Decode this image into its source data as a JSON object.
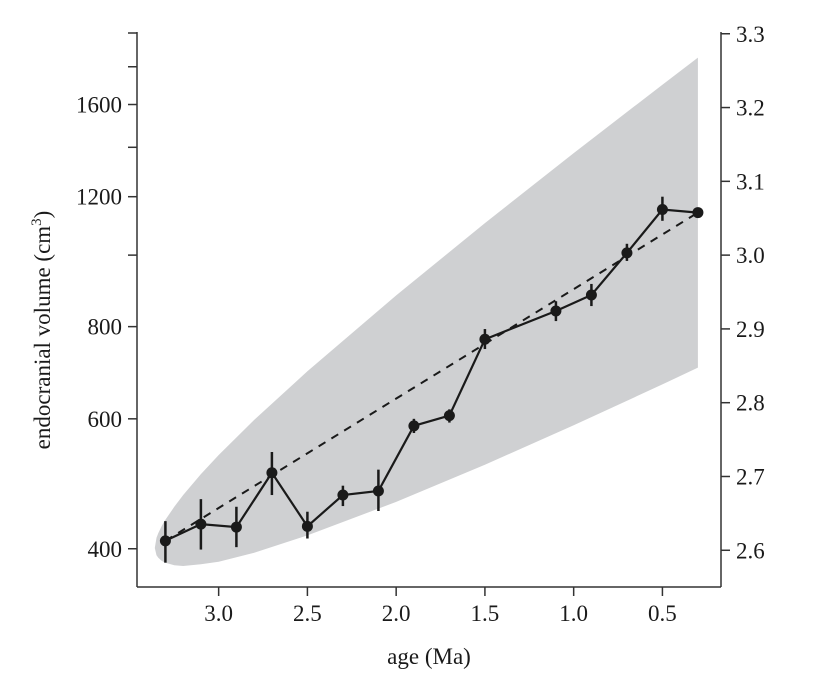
{
  "chart_data": {
    "type": "line",
    "title": "",
    "xlabel": "age (Ma)",
    "ylabel_main": "endocranial volume (cm",
    "ylabel_sup": "3",
    "ylabel_close": ")",
    "x_axis_reversed": true,
    "xlim": [
      3.46,
      0.17
    ],
    "y_scale": "log",
    "ylim": [
      355,
      2000
    ],
    "x_ticks": [
      "3.0",
      "2.5",
      "2.0",
      "1.5",
      "1.0",
      "0.5"
    ],
    "y_left_tick_labels": [
      "400",
      "600",
      "800",
      "1200",
      "1600"
    ],
    "y_left_minor_ticks": [
      1000,
      1400,
      1800,
      2000
    ],
    "y_right_ticks": [
      "2.6",
      "2.7",
      "2.8",
      "2.9",
      "3.0",
      "3.1",
      "3.2",
      "3.3"
    ],
    "grid": false,
    "series": [
      {
        "style": "solid line with points and error bars",
        "x": [
          3.3,
          3.1,
          2.9,
          2.7,
          2.5,
          2.3,
          2.1,
          1.9,
          1.7,
          1.5,
          1.1,
          0.9,
          0.7,
          0.5,
          0.3
        ],
        "y": [
          410,
          432,
          428,
          507,
          429,
          473,
          479,
          587,
          606,
          769,
          840,
          883,
          1007,
          1153,
          1142
        ],
        "y_lower": [
          383,
          399,
          402,
          473,
          413,
          457,
          450,
          574,
          593,
          746,
          814,
          853,
          982,
          1113,
          1130
        ],
        "y_upper": [
          436,
          467,
          456,
          541,
          449,
          487,
          512,
          600,
          618,
          794,
          866,
          914,
          1036,
          1200,
          1155
        ]
      }
    ],
    "trend_line": {
      "style": "dashed",
      "x": [
        3.3,
        0.3
      ],
      "y": [
        410,
        1142
      ]
    },
    "envelope": {
      "color": "#cfd0d2",
      "x": [
        3.36,
        3.35,
        3.34,
        3.32,
        3.3,
        3.25,
        3.2,
        3.1,
        3.0,
        2.8,
        2.5,
        2.0,
        1.5,
        1.0,
        0.5,
        0.3
      ],
      "upper": [
        401,
        414,
        420,
        430,
        438,
        456,
        473,
        505,
        536,
        598,
        696,
        882,
        1105,
        1375,
        1702,
        1852
      ],
      "lower": [
        401,
        392,
        389,
        385,
        383,
        380,
        379,
        381,
        384,
        395,
        417,
        463,
        520,
        588,
        668,
        704
      ]
    },
    "colors": {
      "points": "#1a1a1a",
      "envelope": "#cfd0d2"
    }
  }
}
